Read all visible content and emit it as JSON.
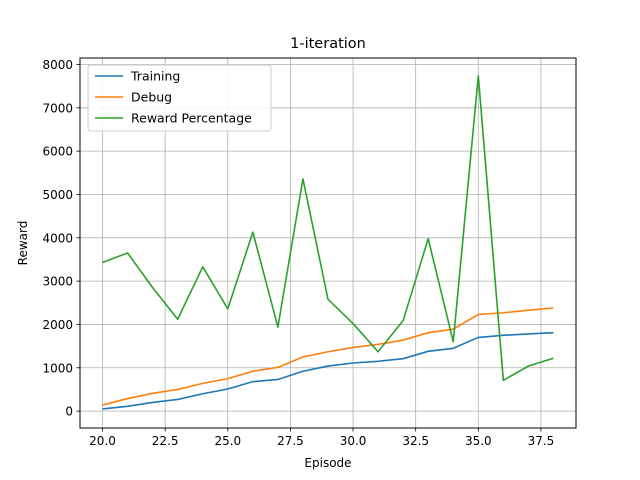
{
  "chart_data": {
    "type": "line",
    "title": "1-iteration",
    "xlabel": "Episode",
    "ylabel": "Reward",
    "xlim": [
      19.1,
      38.9
    ],
    "ylim": [
      -390,
      8150
    ],
    "xticks": [
      20.0,
      22.5,
      25.0,
      27.5,
      30.0,
      32.5,
      35.0,
      37.5
    ],
    "xtick_labels": [
      "20.0",
      "22.5",
      "25.0",
      "27.5",
      "30.0",
      "32.5",
      "35.0",
      "37.5"
    ],
    "yticks": [
      0,
      1000,
      2000,
      3000,
      4000,
      5000,
      6000,
      7000,
      8000
    ],
    "ytick_labels": [
      "0",
      "1000",
      "2000",
      "3000",
      "4000",
      "5000",
      "6000",
      "7000",
      "8000"
    ],
    "grid": true,
    "legend_position": "top-left",
    "x": [
      20,
      21,
      22,
      23,
      24,
      25,
      26,
      27,
      28,
      29,
      30,
      31,
      32,
      33,
      34,
      35,
      36,
      37,
      38
    ],
    "series": [
      {
        "name": "Training",
        "color": "#1f77b4",
        "values": [
          50,
          110,
          200,
          270,
          400,
          510,
          680,
          730,
          920,
          1040,
          1110,
          1150,
          1210,
          1380,
          1450,
          1700,
          1750,
          1780,
          1810
        ]
      },
      {
        "name": "Debug",
        "color": "#ff7f0e",
        "values": [
          140,
          290,
          410,
          500,
          640,
          750,
          920,
          1010,
          1250,
          1370,
          1470,
          1540,
          1640,
          1810,
          1890,
          2230,
          2270,
          2330,
          2380
        ]
      },
      {
        "name": "Reward Percentage",
        "color": "#2ca02c",
        "values": [
          3430,
          3650,
          2850,
          2120,
          3330,
          2360,
          4130,
          1940,
          5360,
          2580,
          2020,
          1370,
          2090,
          3980,
          1600,
          7740,
          710,
          1040,
          1220
        ]
      }
    ]
  }
}
